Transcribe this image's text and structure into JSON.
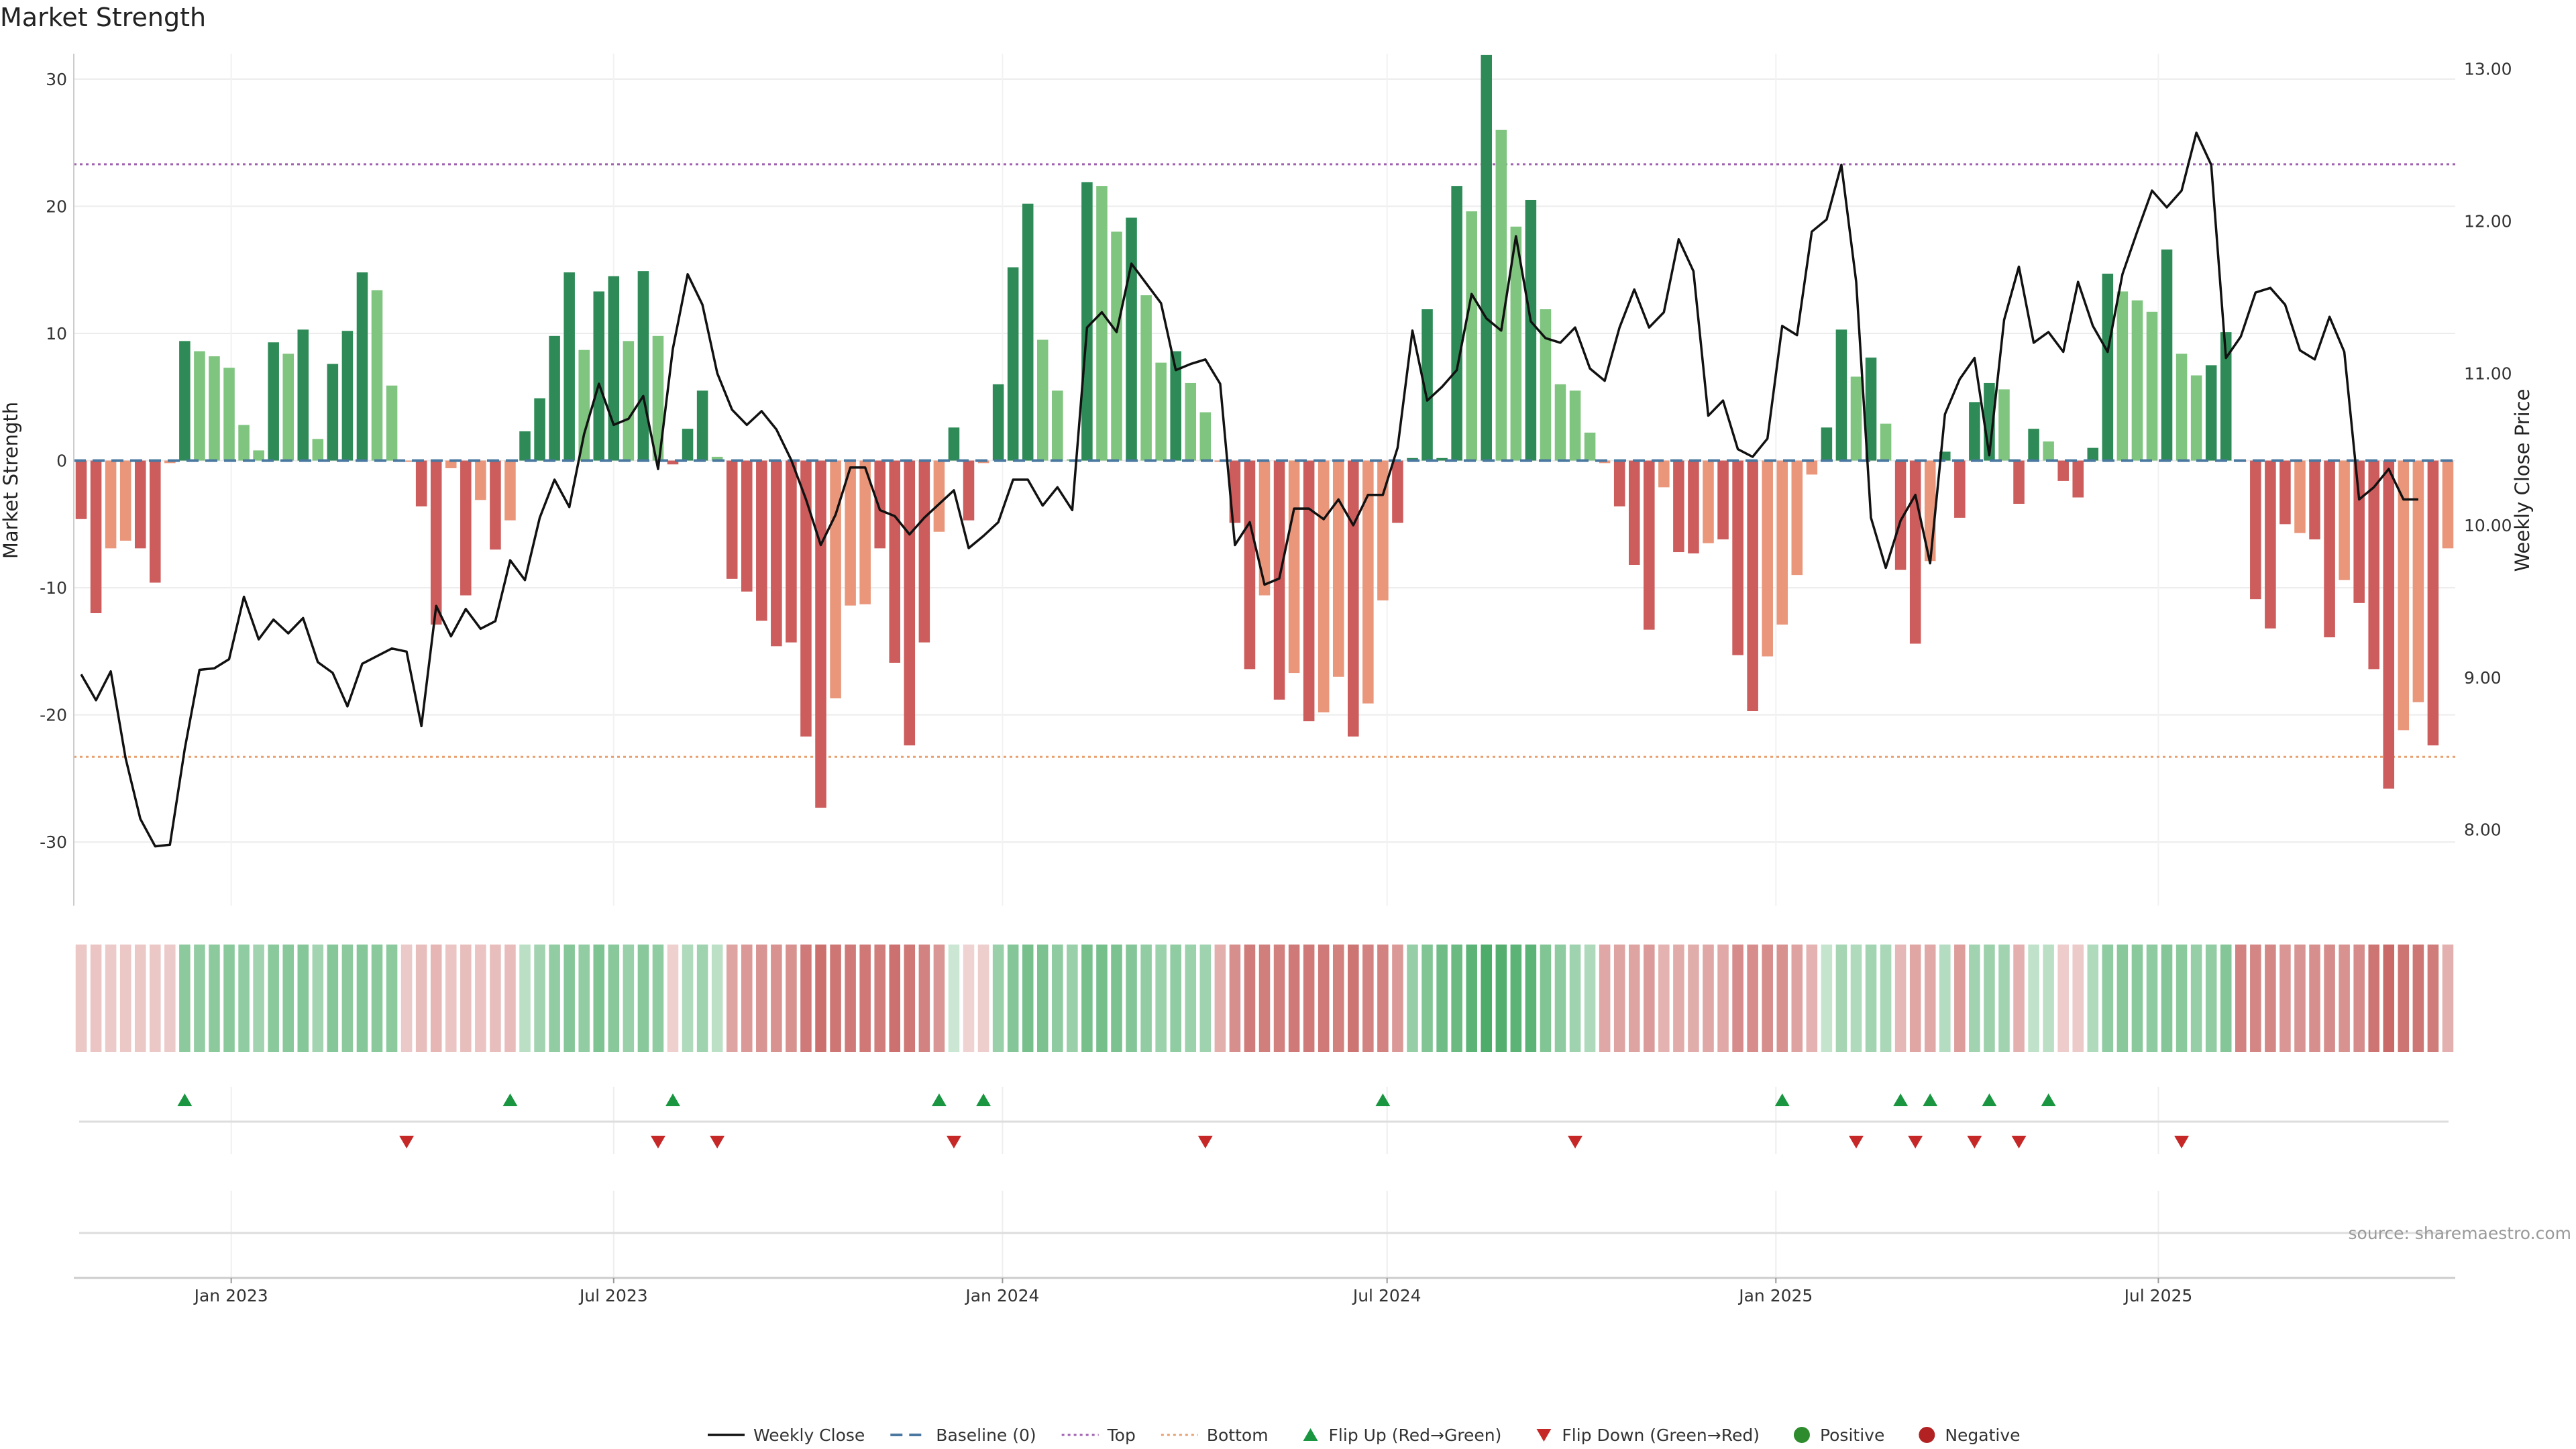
{
  "title": "Market Strength",
  "source": "source: sharemaestro.com",
  "colors": {
    "price_line": "#111111",
    "baseline": "#4a78a0",
    "top_line": "#a060b0",
    "bottom_line": "#e8a070",
    "strong_pos": "#2e8b57",
    "weak_pos": "#7fc47f",
    "strong_neg": "#cd5c5c",
    "weak_neg": "#e9967a",
    "flip_up": "#1a9641",
    "flip_down": "#c62828",
    "positive": "#2e8b2e",
    "negative": "#b22222"
  },
  "chart_data": {
    "type": "bar+line",
    "title": "Market Strength",
    "ylabel": "Market Strength",
    "y2label": "Weekly Close Price",
    "ylim": [
      -35,
      32
    ],
    "y2lim": [
      7.5,
      13.1
    ],
    "yticks": [
      30,
      20,
      10,
      0,
      -10,
      -20,
      -30
    ],
    "y2ticks": [
      "13.00",
      "12.00",
      "11.00",
      "10.00",
      "9.00",
      "8.00"
    ],
    "top_threshold": 23.3,
    "bottom_threshold": -23.3,
    "x_start": "2022-10-22",
    "x_step_days": 7,
    "xticks": [
      {
        "label": "Jan 2023",
        "date": "2023-01-01"
      },
      {
        "label": "Jul 2023",
        "date": "2023-07-01"
      },
      {
        "label": "Jan 2024",
        "date": "2024-01-01"
      },
      {
        "label": "Jul 2024",
        "date": "2024-07-01"
      },
      {
        "label": "Jan 2025",
        "date": "2025-01-01"
      },
      {
        "label": "Jul 2025",
        "date": "2025-07-01"
      }
    ],
    "strength": [
      -4.6,
      -12.0,
      -6.9,
      -6.3,
      -6.9,
      -9.6,
      -0.2,
      9.4,
      8.6,
      8.2,
      7.3,
      2.8,
      0.8,
      9.3,
      8.4,
      10.3,
      1.7,
      7.6,
      10.2,
      14.8,
      13.4,
      5.9,
      -0.1,
      -3.6,
      -12.9,
      -0.6,
      -10.6,
      -3.1,
      -7.0,
      -4.7,
      2.3,
      4.9,
      9.8,
      14.8,
      8.7,
      13.3,
      14.5,
      9.4,
      14.9,
      9.8,
      -0.3,
      2.5,
      5.5,
      0.3,
      -9.3,
      -10.3,
      -12.6,
      -14.6,
      -14.3,
      -21.7,
      -27.3,
      -18.7,
      -11.4,
      -11.3,
      -6.9,
      -15.9,
      -22.4,
      -14.3,
      -5.6,
      2.6,
      -4.7,
      -0.2,
      6.0,
      15.2,
      20.2,
      9.5,
      5.5,
      0.1,
      21.9,
      21.6,
      18.0,
      19.1,
      13.0,
      7.7,
      8.6,
      6.1,
      3.8,
      -0.1,
      -4.9,
      -16.4,
      -10.6,
      -18.8,
      -16.7,
      -20.5,
      -19.8,
      -17.0,
      -21.7,
      -19.1,
      -11.0,
      -4.9,
      0.2,
      11.9,
      0.2,
      21.6,
      19.6,
      31.9,
      26.0,
      18.4,
      20.5,
      11.9,
      6.0,
      5.5,
      2.2,
      -0.2,
      -3.6,
      -8.2,
      -13.3,
      -2.1,
      -7.2,
      -7.3,
      -6.5,
      -6.2,
      -15.3,
      -19.7,
      -15.4,
      -12.9,
      -9.0,
      -1.1,
      2.6,
      10.3,
      6.6,
      8.1,
      2.9,
      -8.6,
      -14.4,
      -7.9,
      0.7,
      -4.5,
      4.6,
      6.1,
      5.6,
      -3.4,
      2.5,
      1.5,
      -1.6,
      -2.9,
      1.0,
      14.7,
      13.3,
      12.6,
      11.7,
      16.6,
      8.4,
      6.7,
      7.5,
      10.1,
      -0.1,
      -10.9,
      -13.2,
      -5.0,
      -5.7,
      -6.2,
      -13.9,
      -9.4,
      -11.2,
      -16.4,
      -25.8,
      -21.2,
      -19.0,
      -22.4,
      -6.9
    ],
    "strength_class": [
      "sn",
      "sn",
      "wn",
      "wn",
      "sn",
      "sn",
      "wn",
      "sp",
      "wp",
      "wp",
      "wp",
      "wp",
      "wp",
      "sp",
      "wp",
      "sp",
      "wp",
      "sp",
      "sp",
      "sp",
      "wp",
      "wp",
      "wn",
      "sn",
      "sn",
      "wn",
      "sn",
      "wn",
      "sn",
      "wn",
      "sp",
      "sp",
      "sp",
      "sp",
      "wp",
      "sp",
      "sp",
      "wp",
      "sp",
      "wp",
      "sn",
      "sp",
      "sp",
      "wp",
      "sn",
      "sn",
      "sn",
      "sn",
      "sn",
      "sn",
      "sn",
      "wn",
      "wn",
      "wn",
      "sn",
      "sn",
      "sn",
      "sn",
      "wn",
      "sp",
      "sn",
      "wn",
      "sp",
      "sp",
      "sp",
      "wp",
      "wp",
      "wp",
      "sp",
      "wp",
      "wp",
      "sp",
      "wp",
      "wp",
      "sp",
      "wp",
      "wp",
      "wn",
      "sn",
      "sn",
      "wn",
      "sn",
      "wn",
      "sn",
      "wn",
      "wn",
      "sn",
      "wn",
      "wn",
      "sn",
      "sp",
      "sp",
      "sp",
      "sp",
      "wp",
      "sp",
      "wp",
      "wp",
      "sp",
      "wp",
      "wp",
      "wp",
      "wp",
      "wn",
      "sn",
      "sn",
      "sn",
      "wn",
      "sn",
      "sn",
      "wn",
      "sn",
      "sn",
      "sn",
      "wn",
      "wn",
      "wn",
      "wn",
      "sp",
      "sp",
      "wp",
      "sp",
      "wp",
      "sn",
      "sn",
      "wn",
      "sp",
      "sn",
      "sp",
      "sp",
      "wp",
      "sn",
      "sp",
      "wp",
      "sn",
      "sn",
      "sp",
      "sp",
      "wp",
      "wp",
      "wp",
      "sp",
      "wp",
      "wp",
      "sp",
      "sp",
      "wn",
      "sn",
      "sn",
      "sn",
      "wn",
      "sn",
      "sn",
      "wn",
      "sn",
      "sn",
      "sn",
      "wn",
      "wn",
      "sn",
      "wn"
    ],
    "price": [
      9.02,
      8.85,
      9.04,
      8.47,
      8.07,
      7.89,
      7.9,
      8.53,
      9.05,
      9.06,
      9.12,
      9.53,
      9.25,
      9.38,
      9.29,
      9.39,
      9.1,
      9.03,
      8.81,
      9.09,
      9.14,
      9.19,
      9.17,
      8.68,
      9.47,
      9.27,
      9.45,
      9.32,
      9.37,
      9.77,
      9.64,
      10.05,
      10.3,
      10.12,
      10.6,
      10.93,
      10.66,
      10.7,
      10.85,
      10.37,
      11.16,
      11.65,
      11.45,
      11.0,
      10.76,
      10.66,
      10.75,
      10.63,
      10.43,
      10.17,
      9.87,
      10.07,
      10.38,
      10.38,
      10.1,
      10.06,
      9.94,
      10.05,
      10.14,
      10.23,
      9.85,
      9.93,
      10.02,
      10.3,
      10.3,
      10.13,
      10.25,
      10.1,
      11.3,
      11.4,
      11.27,
      11.72,
      11.59,
      11.46,
      11.02,
      11.06,
      11.09,
      10.93,
      9.87,
      10.02,
      9.61,
      9.65,
      10.11,
      10.11,
      10.04,
      10.17,
      10.0,
      10.2,
      10.2,
      10.51,
      11.28,
      10.82,
      10.91,
      11.02,
      11.52,
      11.36,
      11.28,
      11.9,
      11.34,
      11.23,
      11.2,
      11.3,
      11.03,
      10.95,
      11.3,
      11.55,
      11.3,
      11.4,
      11.88,
      11.67,
      10.72,
      10.82,
      10.5,
      10.45,
      10.57,
      11.31,
      11.25,
      11.93,
      12.01,
      12.37,
      11.6,
      10.05,
      9.72,
      10.03,
      10.2,
      9.75,
      10.73,
      10.96,
      11.1,
      10.46,
      11.35,
      11.7,
      11.2,
      11.27,
      11.14,
      11.6,
      11.31,
      11.14,
      11.65,
      11.93,
      12.2,
      12.09,
      12.2,
      12.58,
      12.37,
      11.1,
      11.24,
      11.53,
      11.56,
      11.45,
      11.15,
      11.09,
      11.37,
      11.14,
      10.17,
      10.25,
      10.37,
      10.17,
      10.17
    ],
    "heat_alpha": [
      0.32,
      0.33,
      0.3,
      0.32,
      0.32,
      0.32,
      0.3,
      0.55,
      0.52,
      0.55,
      0.56,
      0.53,
      0.45,
      0.56,
      0.57,
      0.58,
      0.44,
      0.58,
      0.55,
      0.58,
      0.56,
      0.55,
      0.31,
      0.37,
      0.42,
      0.33,
      0.37,
      0.34,
      0.37,
      0.38,
      0.33,
      0.45,
      0.52,
      0.58,
      0.52,
      0.62,
      0.57,
      0.49,
      0.57,
      0.53,
      0.27,
      0.38,
      0.46,
      0.32,
      0.52,
      0.59,
      0.61,
      0.62,
      0.63,
      0.76,
      0.82,
      0.78,
      0.76,
      0.77,
      0.74,
      0.81,
      0.77,
      0.71,
      0.6,
      0.25,
      0.25,
      0.28,
      0.49,
      0.59,
      0.65,
      0.63,
      0.54,
      0.49,
      0.65,
      0.66,
      0.63,
      0.59,
      0.52,
      0.48,
      0.53,
      0.48,
      0.46,
      0.46,
      0.64,
      0.75,
      0.73,
      0.72,
      0.76,
      0.76,
      0.76,
      0.72,
      0.79,
      0.71,
      0.71,
      0.59,
      0.5,
      0.6,
      0.69,
      0.71,
      0.78,
      0.85,
      0.82,
      0.78,
      0.78,
      0.6,
      0.54,
      0.46,
      0.39,
      0.5,
      0.52,
      0.52,
      0.57,
      0.44,
      0.48,
      0.47,
      0.5,
      0.49,
      0.66,
      0.65,
      0.65,
      0.63,
      0.53,
      0.44,
      0.28,
      0.43,
      0.38,
      0.44,
      0.41,
      0.41,
      0.51,
      0.49,
      0.36,
      0.56,
      0.45,
      0.47,
      0.45,
      0.45,
      0.3,
      0.33,
      0.29,
      0.3,
      0.38,
      0.53,
      0.57,
      0.56,
      0.54,
      0.59,
      0.56,
      0.5,
      0.52,
      0.59,
      0.71,
      0.69,
      0.68,
      0.6,
      0.61,
      0.64,
      0.66,
      0.62,
      0.66,
      0.79,
      0.85,
      0.79,
      0.78,
      0.75,
      0.45
    ],
    "flip_up_indices": [
      7,
      29,
      40,
      58,
      61,
      88,
      115,
      123,
      125,
      129,
      133
    ],
    "flip_down_indices": [
      22,
      39,
      43,
      59,
      76,
      101,
      120,
      124,
      128,
      131,
      142
    ],
    "legend": [
      {
        "label": "Weekly Close",
        "kind": "line"
      },
      {
        "label": "Baseline (0)",
        "kind": "dash"
      },
      {
        "label": "Top",
        "kind": "dot-purple"
      },
      {
        "label": "Bottom",
        "kind": "dot-orange"
      },
      {
        "label": "Flip Up (Red→Green)",
        "kind": "tri-up"
      },
      {
        "label": "Flip Down (Green→Red)",
        "kind": "tri-down"
      },
      {
        "label": "Positive",
        "kind": "dot-green"
      },
      {
        "label": "Negative",
        "kind": "dot-red"
      }
    ]
  }
}
